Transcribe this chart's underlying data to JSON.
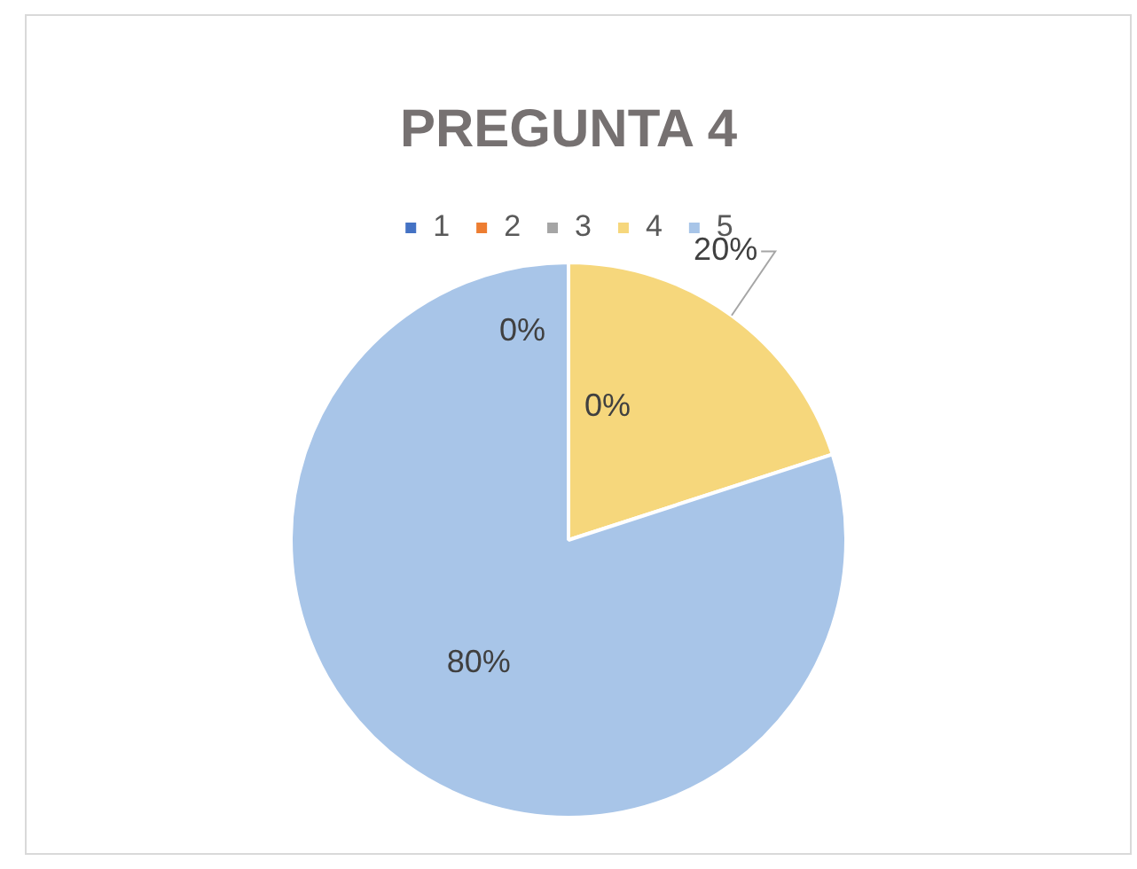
{
  "chart_data": {
    "type": "pie",
    "title": "PREGUNTA 4",
    "categories": [
      "1",
      "2",
      "3",
      "4",
      "5"
    ],
    "values": [
      0,
      0,
      0,
      20,
      80
    ],
    "colors": [
      "#4472c4",
      "#ed7d31",
      "#a5a5a5",
      "#f6d77c",
      "#a8c5e8"
    ],
    "value_labels": [
      "0%",
      "0%",
      null,
      "20%",
      "80%"
    ],
    "legend": "top"
  }
}
